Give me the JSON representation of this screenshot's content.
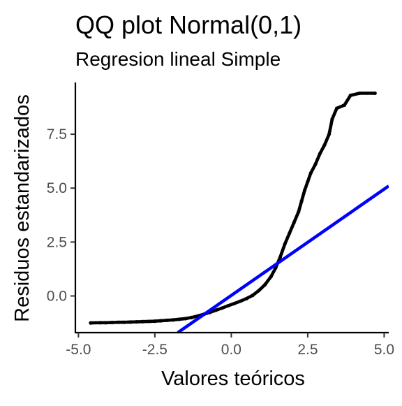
{
  "chart_data": {
    "type": "scatter",
    "title": "QQ plot Normal(0,1)",
    "subtitle": "Regresion lineal Simple",
    "xlabel": "Valores teóricos",
    "ylabel": "Residuos estandarizados",
    "xlim": [
      -5.1,
      5.15
    ],
    "ylim": [
      -1.7,
      9.9
    ],
    "grid": false,
    "legend": "none",
    "x_ticks": [
      {
        "value": -5.0,
        "label": "-5.0"
      },
      {
        "value": -2.5,
        "label": "-2.5"
      },
      {
        "value": 0.0,
        "label": "0.0"
      },
      {
        "value": 2.5,
        "label": "2.5"
      },
      {
        "value": 5.0,
        "label": "5.0"
      }
    ],
    "y_ticks": [
      {
        "value": 0.0,
        "label": "0.0"
      },
      {
        "value": 2.5,
        "label": "2.5"
      },
      {
        "value": 5.0,
        "label": "5.0"
      },
      {
        "value": 7.5,
        "label": "7.5"
      }
    ],
    "series": [
      {
        "type": "scatter",
        "color": "#000000",
        "points": [
          [
            -4.6,
            -1.25
          ],
          [
            -4.3,
            -1.24
          ],
          [
            -4.1,
            -1.24
          ],
          [
            -3.9,
            -1.23
          ],
          [
            -3.7,
            -1.22
          ],
          [
            -3.5,
            -1.22
          ],
          [
            -3.3,
            -1.21
          ],
          [
            -3.1,
            -1.2
          ],
          [
            -2.9,
            -1.19
          ],
          [
            -2.7,
            -1.18
          ],
          [
            -2.5,
            -1.17
          ],
          [
            -2.3,
            -1.15
          ],
          [
            -2.1,
            -1.13
          ],
          [
            -1.9,
            -1.11
          ],
          [
            -1.7,
            -1.08
          ],
          [
            -1.5,
            -1.05
          ],
          [
            -1.3,
            -1.0
          ],
          [
            -1.1,
            -0.93
          ],
          [
            -0.9,
            -0.85
          ],
          [
            -0.7,
            -0.76
          ],
          [
            -0.5,
            -0.66
          ],
          [
            -0.3,
            -0.56
          ],
          [
            -0.1,
            -0.45
          ],
          [
            0.1,
            -0.35
          ],
          [
            0.3,
            -0.24
          ],
          [
            0.5,
            -0.12
          ],
          [
            0.7,
            0.03
          ],
          [
            0.9,
            0.25
          ],
          [
            1.1,
            0.52
          ],
          [
            1.3,
            0.9
          ],
          [
            1.45,
            1.3
          ],
          [
            1.6,
            1.8
          ],
          [
            1.75,
            2.4
          ],
          [
            1.9,
            2.9
          ],
          [
            2.05,
            3.4
          ],
          [
            2.2,
            3.9
          ],
          [
            2.3,
            4.4
          ],
          [
            2.4,
            4.9
          ],
          [
            2.5,
            5.3
          ],
          [
            2.6,
            5.7
          ],
          [
            2.75,
            6.1
          ],
          [
            2.9,
            6.6
          ],
          [
            3.05,
            7.0
          ],
          [
            3.2,
            7.5
          ],
          [
            3.3,
            8.2
          ],
          [
            3.45,
            8.7
          ],
          [
            3.7,
            8.85
          ],
          [
            3.9,
            9.3
          ],
          [
            4.2,
            9.4
          ],
          [
            4.7,
            9.4
          ]
        ]
      },
      {
        "type": "line",
        "color": "#0000ff",
        "points": [
          [
            -1.75,
            -1.7
          ],
          [
            5.15,
            5.1
          ]
        ]
      }
    ]
  }
}
